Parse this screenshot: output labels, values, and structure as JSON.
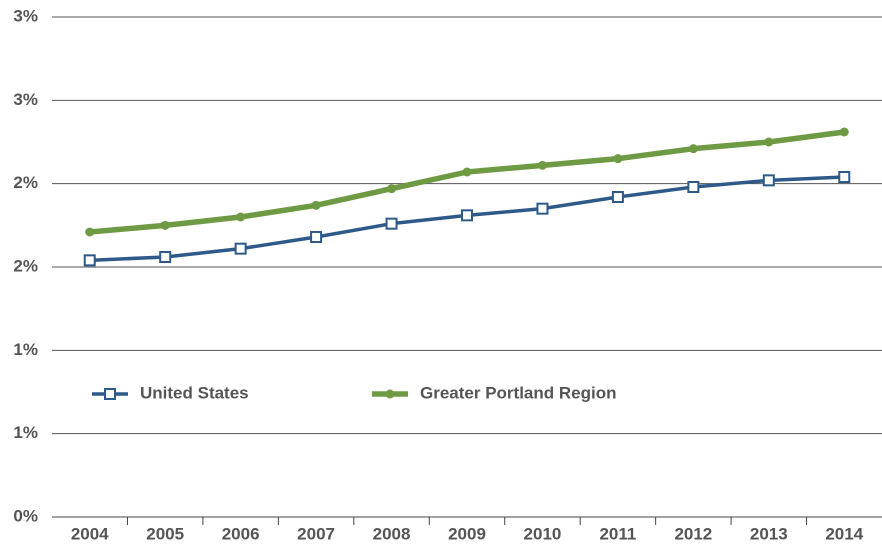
{
  "chart_data": {
    "type": "line",
    "categories": [
      "2004",
      "2005",
      "2006",
      "2007",
      "2008",
      "2009",
      "2010",
      "2011",
      "2012",
      "2013",
      "2014"
    ],
    "series": [
      {
        "name": "United States",
        "color": "#2e5a8a",
        "marker": "square",
        "values": [
          1.54,
          1.56,
          1.61,
          1.68,
          1.76,
          1.81,
          1.85,
          1.92,
          1.98,
          2.02,
          2.04
        ]
      },
      {
        "name": "Greater Portland Region",
        "color": "#6e9a44",
        "marker": "circle",
        "values": [
          1.71,
          1.75,
          1.8,
          1.87,
          1.97,
          2.07,
          2.11,
          2.15,
          2.21,
          2.25,
          2.31
        ]
      }
    ],
    "ylim": [
      0,
      3
    ],
    "yticks": [
      {
        "value": 0,
        "label": "0%"
      },
      {
        "value": 0.5,
        "label": "1%"
      },
      {
        "value": 1,
        "label": "1%"
      },
      {
        "value": 1.5,
        "label": "2%"
      },
      {
        "value": 2,
        "label": "2%"
      },
      {
        "value": 2.5,
        "label": "3%"
      },
      {
        "value": 3,
        "label": "3%"
      }
    ],
    "grid": true
  }
}
